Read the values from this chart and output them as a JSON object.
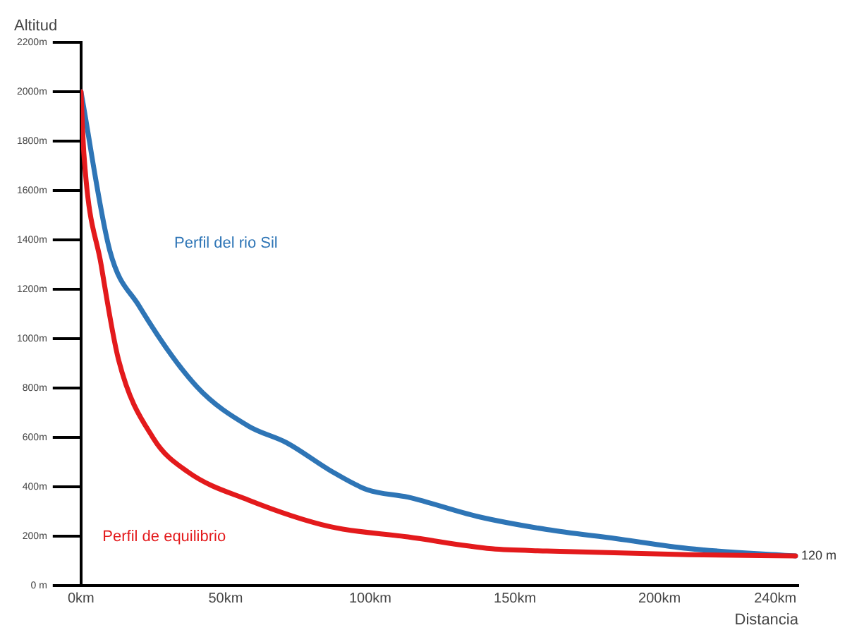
{
  "chart_data": {
    "type": "line",
    "xlabel": "Distancia",
    "ylabel": "Altitud",
    "xlim": [
      0,
      248
    ],
    "ylim": [
      0,
      2200
    ],
    "xticks": [
      {
        "value": 0,
        "label": "0km"
      },
      {
        "value": 50,
        "label": "50km"
      },
      {
        "value": 100,
        "label": "100km"
      },
      {
        "value": 150,
        "label": "150km"
      },
      {
        "value": 200,
        "label": "200km"
      },
      {
        "value": 240,
        "label": "240km"
      }
    ],
    "yticks": [
      {
        "value": 0,
        "label": "0 m"
      },
      {
        "value": 200,
        "label": "200m"
      },
      {
        "value": 400,
        "label": "400m"
      },
      {
        "value": 600,
        "label": "600m"
      },
      {
        "value": 800,
        "label": "800m"
      },
      {
        "value": 1000,
        "label": "1000m"
      },
      {
        "value": 1200,
        "label": "1200m"
      },
      {
        "value": 1400,
        "label": "1400m"
      },
      {
        "value": 1600,
        "label": "1600m"
      },
      {
        "value": 1800,
        "label": "1800m"
      },
      {
        "value": 2000,
        "label": "2000m"
      },
      {
        "value": 2200,
        "label": "2200m"
      }
    ],
    "series": [
      {
        "name": "Perfil del rio Sil",
        "color": "#2e75b6",
        "x": [
          0,
          10,
          20,
          40,
          58,
          71,
          87,
          99,
          113,
          137,
          161,
          185,
          210,
          247
        ],
        "values": [
          2000,
          1355,
          1134,
          806,
          645,
          579,
          460,
          388,
          358,
          280,
          227,
          190,
          150,
          120
        ]
      },
      {
        "name": "Perfil de equilibrio",
        "color": "#e31a1c",
        "x": [
          0,
          1,
          7,
          13,
          25,
          37,
          58,
          86,
          113,
          142,
          161,
          210,
          247
        ],
        "values": [
          2000,
          1750,
          1297,
          914,
          597,
          460,
          346,
          239,
          197,
          149,
          140,
          125,
          120
        ]
      }
    ],
    "annotations": [
      {
        "text": "120 m",
        "x": 247,
        "y": 120
      }
    ],
    "grid": false,
    "legend": false,
    "marker": "none",
    "line_style": "solid"
  }
}
